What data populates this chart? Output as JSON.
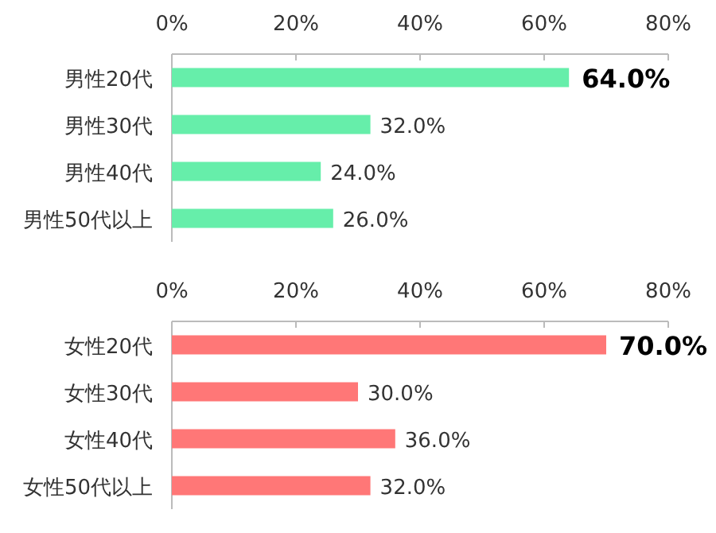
{
  "chart_data": [
    {
      "type": "bar",
      "orientation": "horizontal",
      "categories": [
        "男性20代",
        "男性30代",
        "男性40代",
        "男性50代以上"
      ],
      "values": [
        64,
        32,
        24,
        26
      ],
      "value_labels": [
        "64.0%",
        "32.0%",
        "24.0%",
        "26.0%"
      ],
      "color": "#66eeaa",
      "xlim": [
        0,
        80
      ],
      "xticks": [
        {
          "value": 0,
          "label": "0%"
        },
        {
          "value": 20,
          "label": "20%"
        },
        {
          "value": 40,
          "label": "40%"
        },
        {
          "value": 60,
          "label": "60%"
        },
        {
          "value": 80,
          "label": "80%"
        }
      ]
    },
    {
      "type": "bar",
      "orientation": "horizontal",
      "categories": [
        "女性20代",
        "女性30代",
        "女性40代",
        "女性50代以上"
      ],
      "values": [
        70,
        30,
        36,
        32
      ],
      "value_labels": [
        "70.0%",
        "30.0%",
        "36.0%",
        "32.0%"
      ],
      "color": "#ff7777",
      "xlim": [
        0,
        80
      ],
      "xticks": [
        {
          "value": 0,
          "label": "0%"
        },
        {
          "value": 20,
          "label": "20%"
        },
        {
          "value": 40,
          "label": "40%"
        },
        {
          "value": 60,
          "label": "60%"
        },
        {
          "value": 80,
          "label": "80%"
        }
      ]
    }
  ]
}
